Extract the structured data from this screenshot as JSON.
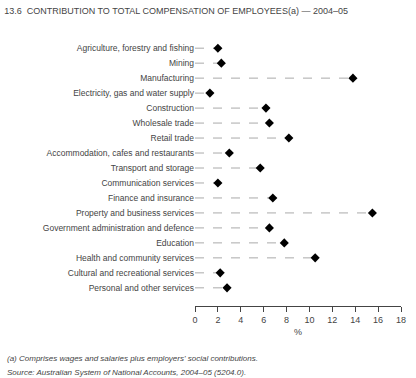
{
  "chart_data": {
    "type": "lollipop",
    "orientation": "horizontal",
    "title": "13.6  CONTRIBUTION TO TOTAL COMPENSATION OF EMPLOYEES(a) — 2004–05",
    "categories": [
      "Agriculture, forestry and fishing",
      "Mining",
      "Manufacturing",
      "Electricity, gas and water supply",
      "Construction",
      "Wholesale trade",
      "Retail trade",
      "Accommodation, cafes and restaurants",
      "Transport and storage",
      "Communication services",
      "Finance and insurance",
      "Property and business services",
      "Government administration and defence",
      "Education",
      "Health and community services",
      "Cultural and recreational services",
      "Personal and other services"
    ],
    "values": [
      2.0,
      2.3,
      13.8,
      1.3,
      6.2,
      6.5,
      8.2,
      3.0,
      5.7,
      2.0,
      6.8,
      15.5,
      6.5,
      7.8,
      10.5,
      2.2,
      2.8
    ],
    "xlabel": "%",
    "xlim": [
      0,
      18
    ],
    "xticks": [
      0,
      2,
      4,
      6,
      8,
      10,
      12,
      14,
      16,
      18
    ],
    "color": "#000000",
    "marker": "diamond",
    "line_style": "dashed",
    "grid": false,
    "annotations": [
      "(a) Comprises wages and salaries plus employers' social contributions.",
      "Source: Australian System of National Accounts, 2004–05 (5204.0)."
    ]
  }
}
